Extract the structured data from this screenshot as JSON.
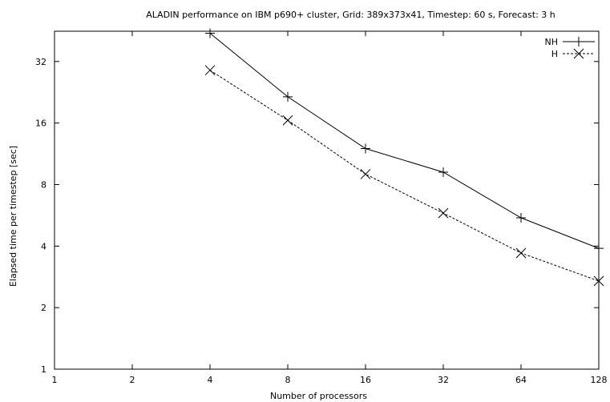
{
  "chart_data": {
    "type": "line",
    "title": "ALADIN performance on IBM p690+ cluster, Grid: 389x373x41, Timestep: 60 s, Forecast: 3 h",
    "xlabel": "Number of processors",
    "ylabel": "Elapsed time per timestep [sec]",
    "x_scale": "log2",
    "y_scale": "log2",
    "xlim": [
      1,
      128
    ],
    "ylim": [
      1,
      45
    ],
    "x_ticks": [
      "1",
      "2",
      "4",
      "8",
      "16",
      "32",
      "64",
      "128"
    ],
    "y_ticks": [
      "1",
      "2",
      "4",
      "8",
      "16",
      "32"
    ],
    "legend_position": "top-right",
    "grid": false,
    "series": [
      {
        "name": "NH",
        "marker": "plus",
        "line_style": "solid",
        "x": [
          4,
          8,
          16,
          32,
          64,
          128
        ],
        "y": [
          44,
          21.5,
          12,
          9.2,
          5.5,
          3.9
        ]
      },
      {
        "name": "H",
        "marker": "cross",
        "line_style": "dashed",
        "x": [
          4,
          8,
          16,
          32,
          64,
          128
        ],
        "y": [
          29,
          16.5,
          9,
          5.8,
          3.7,
          2.7
        ]
      }
    ]
  }
}
